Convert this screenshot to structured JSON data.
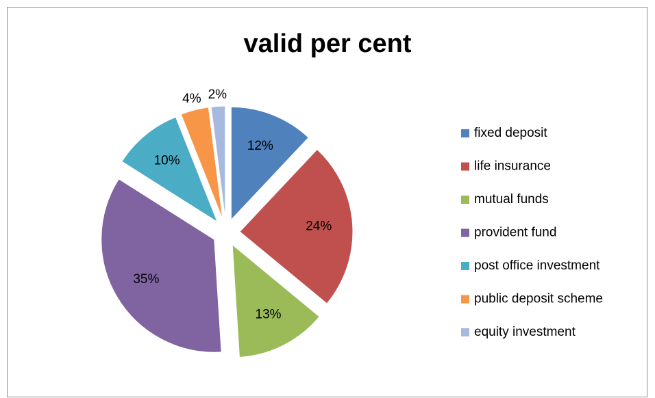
{
  "chart_data": {
    "type": "pie",
    "title": "valid per cent",
    "categories": [
      "fixed deposit",
      "life insurance",
      "mutual funds",
      "provident fund",
      "post office investment",
      "public deposit scheme",
      "equity investment"
    ],
    "values": [
      12,
      24,
      13,
      35,
      10,
      4,
      2
    ],
    "value_labels": [
      "12%",
      "24%",
      "13%",
      "35%",
      "10%",
      "4%",
      "2%"
    ],
    "colors": [
      "#4f81bd",
      "#c0504d",
      "#9bbb59",
      "#8064a2",
      "#4bacc6",
      "#f79646",
      "#a7b9de"
    ],
    "legend": "right"
  }
}
